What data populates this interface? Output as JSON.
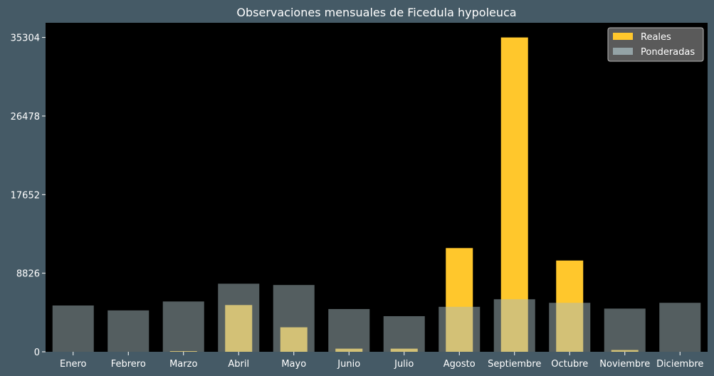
{
  "chart_data": {
    "type": "bar",
    "title": "Observaciones mensuales de Ficedula hypoleuca",
    "xlabel": "",
    "ylabel": "",
    "categories": [
      "Enero",
      "Febrero",
      "Marzo",
      "Abril",
      "Mayo",
      "Junio",
      "Julio",
      "Agosto",
      "Septiembre",
      "Octubre",
      "Noviembre",
      "Diciembre"
    ],
    "yticks": [
      0,
      8826,
      17652,
      26478,
      35304
    ],
    "ylim": [
      0,
      36950
    ],
    "grid": false,
    "legend_position": "top-right",
    "series": [
      {
        "name": "Reales",
        "color": "#ffc72c",
        "values": [
          0,
          0,
          80,
          5250,
          2750,
          350,
          350,
          11650,
          35304,
          10250,
          200,
          0
        ]
      },
      {
        "name": "Ponderadas",
        "color": "#a8bcc0",
        "values": [
          5200,
          4650,
          5650,
          7650,
          7500,
          4800,
          4000,
          5050,
          5900,
          5500,
          4850,
          5500
        ]
      }
    ],
    "colors": {
      "background": "#455a66",
      "plot_background": "#000000",
      "text": "#ffffff"
    }
  }
}
